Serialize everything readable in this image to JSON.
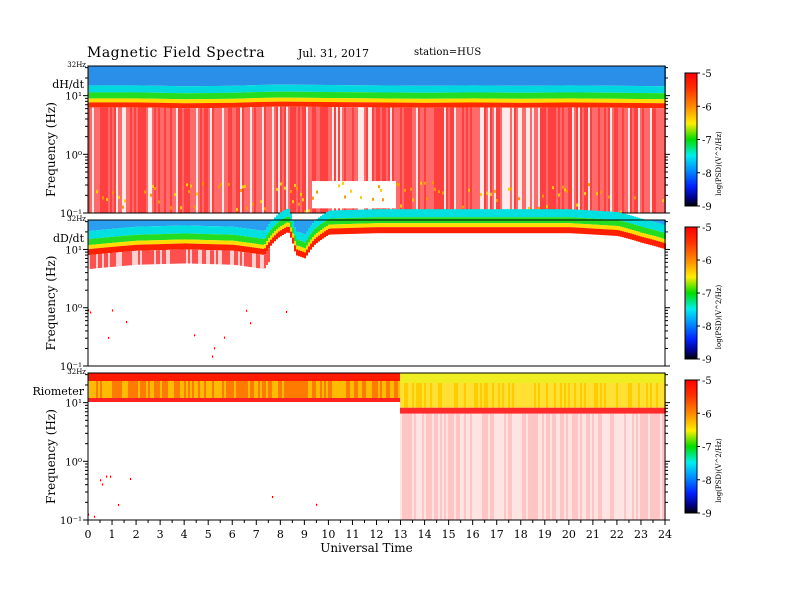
{
  "header": {
    "title": "Magnetic  Field  Spectra",
    "date": "Jul.  31,  2017",
    "station": "station=HUS"
  },
  "colors": {
    "spectrum_scale": [
      "#ffffff",
      "#ffe8e8",
      "#ff9999",
      "#ff2020",
      "#dd0000",
      "#ff8800",
      "#ffee00",
      "#00e000",
      "#00e8e8",
      "#00aaff",
      "#0040ff",
      "#0000cc",
      "#000000"
    ],
    "upper_band": "#2d9ff0",
    "background": "#ffffff"
  },
  "chart_data": [
    {
      "type": "heatmap",
      "panel": "dH/dt",
      "label": "dH/dt",
      "ylabel": "Frequency  (Hz)",
      "y_scale": "log",
      "y_ticks": [
        "10⁻¹",
        "10⁰",
        "10¹"
      ],
      "y_top_label": "32Hz",
      "x_range": [
        0,
        24
      ],
      "colorbar": {
        "label": "log(PSD)(V^2/Hz)",
        "range": [
          -9,
          -5
        ],
        "ticks": [
          "-5",
          "-6",
          "-7",
          "-8",
          "-9"
        ]
      },
      "band_edge_freq_hz_by_hour": [
        [
          0,
          6.3
        ],
        [
          2,
          6.3
        ],
        [
          4,
          6.1
        ],
        [
          6,
          6.2
        ],
        [
          7,
          6.4
        ],
        [
          8,
          6.5
        ],
        [
          10,
          6.4
        ],
        [
          12,
          6.3
        ],
        [
          14,
          6.2
        ],
        [
          16,
          6.3
        ],
        [
          18,
          6.2
        ],
        [
          20,
          6.3
        ],
        [
          22,
          6.2
        ],
        [
          24,
          6.1
        ]
      ],
      "quiet_intervals_hours": [
        [
          9.3,
          12.8
        ]
      ]
    },
    {
      "type": "heatmap",
      "panel": "dD/dt",
      "label": "dD/dt",
      "ylabel": "Frequency  (Hz)",
      "y_scale": "log",
      "y_ticks": [
        "10⁻¹",
        "10⁰",
        "10¹"
      ],
      "y_top_label": "32Hz",
      "x_range": [
        0,
        24
      ],
      "colorbar": {
        "label": "log(PSD)(V^2/Hz)",
        "range": [
          -9,
          -5
        ],
        "ticks": [
          "-5",
          "-6",
          "-7",
          "-8",
          "-9"
        ]
      },
      "band_edge_freq_hz_by_hour": [
        [
          0,
          8
        ],
        [
          2,
          9.5
        ],
        [
          4,
          10
        ],
        [
          6,
          9.5
        ],
        [
          7.3,
          8
        ],
        [
          7.9,
          16
        ],
        [
          8.3,
          20
        ],
        [
          8.6,
          8
        ],
        [
          9.0,
          7
        ],
        [
          9.4,
          12
        ],
        [
          10,
          18
        ],
        [
          12,
          19
        ],
        [
          14,
          19
        ],
        [
          16,
          19
        ],
        [
          18,
          19
        ],
        [
          20,
          19
        ],
        [
          22,
          17
        ],
        [
          23,
          13
        ],
        [
          24,
          10
        ]
      ],
      "red_band_until_hour": 7.5
    },
    {
      "type": "heatmap",
      "panel": "Riometer",
      "label": "Riometer",
      "ylabel": "Frequency  (Hz)",
      "y_scale": "log",
      "y_ticks": [
        "10⁻¹",
        "10⁰",
        "10¹"
      ],
      "y_top_label": "32Hz",
      "x_range": [
        0,
        24
      ],
      "x_ticks": [
        "0",
        "1",
        "2",
        "3",
        "4",
        "5",
        "6",
        "7",
        "8",
        "9",
        "10",
        "11",
        "12",
        "13",
        "14",
        "15",
        "16",
        "17",
        "18",
        "19",
        "20",
        "21",
        "22",
        "23",
        "24"
      ],
      "xlabel": "Universal  Time",
      "colorbar": {
        "label": "log(PSD)(V^2/Hz)",
        "range": [
          -9,
          -5
        ],
        "ticks": [
          "-5",
          "-6",
          "-7",
          "-8",
          "-9"
        ]
      },
      "regime_change_hour": 12.95,
      "band_edge_freq_hz_by_hour": [
        [
          0,
          12
        ],
        [
          12.9,
          12
        ],
        [
          12.95,
          7
        ],
        [
          24,
          7
        ]
      ]
    }
  ]
}
